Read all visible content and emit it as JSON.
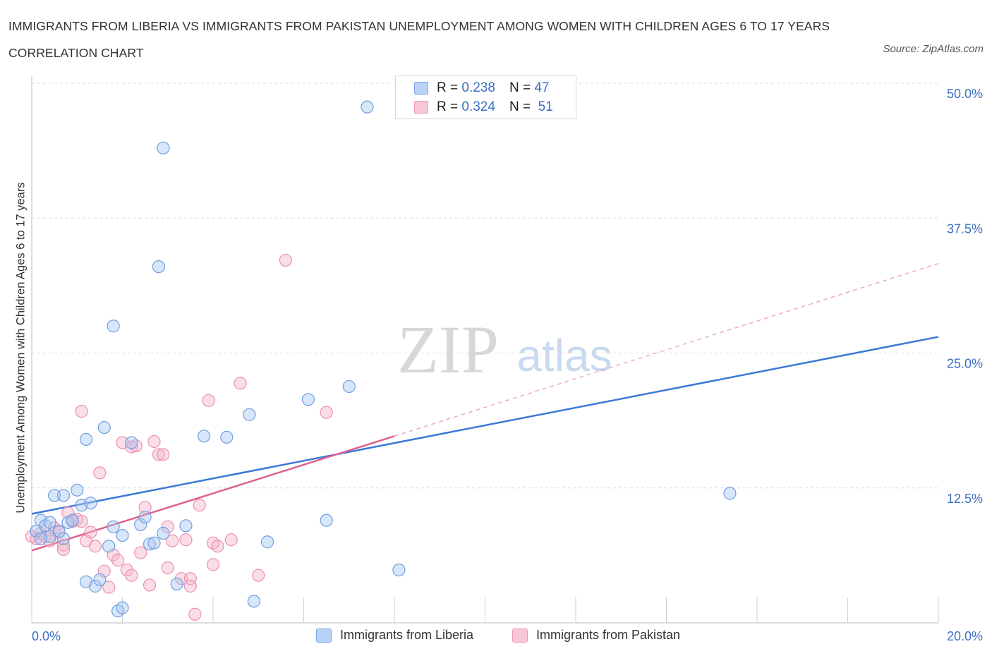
{
  "title": "IMMIGRANTS FROM LIBERIA VS IMMIGRANTS FROM PAKISTAN UNEMPLOYMENT AMONG WOMEN WITH CHILDREN AGES 6 TO 17 YEARS CORRELATION CHART",
  "source": "Source: ZipAtlas.com",
  "watermark": {
    "zip": "ZIP",
    "atlas": "atlas"
  },
  "legend_top": {
    "r_label": "R =",
    "n_label": "N =",
    "liberia": {
      "r": "0.238",
      "n": "47"
    },
    "pakistan": {
      "r": "0.324",
      "n": "51"
    }
  },
  "chart_data": {
    "type": "scatter",
    "title": "IMMIGRANTS FROM LIBERIA VS IMMIGRANTS FROM PAKISTAN UNEMPLOYMENT AMONG WOMEN WITH CHILDREN AGES 6 TO 17 YEARS CORRELATION CHART",
    "xlabel": "",
    "ylabel": "Unemployment Among Women with Children Ages 6 to 17 years",
    "xlim": [
      0,
      20
    ],
    "ylim": [
      0,
      50
    ],
    "x_tick_labels": [
      "0.0%",
      "20.0%"
    ],
    "y_tick_labels": [
      "12.5%",
      "25.0%",
      "37.5%",
      "50.0%"
    ],
    "y_ticks": [
      12.5,
      25,
      37.5,
      50
    ],
    "grid": true,
    "legend_position": "bottom",
    "colors": {
      "liberia": "#3a78d8",
      "pakistan": "#e0608e",
      "liberia_fill": "#a9c8f2",
      "pakistan_fill": "#f5b6ca"
    },
    "series": [
      {
        "name": "Immigrants from Liberia",
        "r": 0.238,
        "n": 47,
        "trend": {
          "x": [
            0,
            20
          ],
          "y": [
            10.1,
            26.5
          ]
        },
        "points": [
          [
            0.1,
            8.5
          ],
          [
            0.2,
            9.5
          ],
          [
            0.3,
            9.0
          ],
          [
            0.4,
            8.0
          ],
          [
            0.6,
            8.5
          ],
          [
            0.7,
            7.8
          ],
          [
            0.4,
            9.3
          ],
          [
            0.5,
            11.8
          ],
          [
            0.7,
            11.8
          ],
          [
            0.8,
            9.3
          ],
          [
            0.9,
            9.5
          ],
          [
            1.0,
            12.3
          ],
          [
            1.1,
            10.9
          ],
          [
            1.2,
            3.8
          ],
          [
            1.3,
            11.1
          ],
          [
            1.2,
            17.0
          ],
          [
            1.6,
            18.1
          ],
          [
            1.4,
            3.4
          ],
          [
            1.7,
            7.1
          ],
          [
            1.8,
            8.9
          ],
          [
            1.8,
            27.5
          ],
          [
            1.9,
            1.1
          ],
          [
            2.0,
            1.4
          ],
          [
            2.0,
            8.1
          ],
          [
            2.2,
            16.7
          ],
          [
            2.4,
            9.1
          ],
          [
            2.5,
            9.8
          ],
          [
            2.6,
            7.3
          ],
          [
            2.7,
            7.4
          ],
          [
            2.8,
            33.0
          ],
          [
            2.9,
            44.0
          ],
          [
            2.9,
            8.3
          ],
          [
            3.2,
            3.6
          ],
          [
            3.4,
            9.0
          ],
          [
            3.8,
            17.3
          ],
          [
            4.3,
            17.2
          ],
          [
            4.8,
            19.3
          ],
          [
            4.9,
            2.0
          ],
          [
            5.2,
            7.5
          ],
          [
            6.1,
            20.7
          ],
          [
            6.5,
            9.5
          ],
          [
            7.0,
            21.9
          ],
          [
            7.4,
            47.8
          ],
          [
            8.1,
            4.9
          ],
          [
            15.4,
            12.0
          ],
          [
            0.2,
            7.8
          ],
          [
            1.5,
            4.0
          ]
        ]
      },
      {
        "name": "Immigrants from Pakistan",
        "r": 0.324,
        "n": 51,
        "trend_solid": {
          "x": [
            0,
            8.0
          ],
          "y": [
            6.7,
            17.3
          ]
        },
        "trend_dashed": {
          "x": [
            8.0,
            20
          ],
          "y": [
            17.3,
            33.3
          ]
        },
        "points": [
          [
            0.1,
            7.8
          ],
          [
            0.2,
            8.3
          ],
          [
            0.3,
            8.0
          ],
          [
            0.4,
            7.6
          ],
          [
            0.5,
            8.8
          ],
          [
            0.6,
            8.4
          ],
          [
            0.7,
            7.2
          ],
          [
            0.7,
            6.8
          ],
          [
            0.8,
            10.2
          ],
          [
            0.9,
            9.4
          ],
          [
            1.0,
            9.6
          ],
          [
            1.1,
            9.4
          ],
          [
            1.1,
            19.6
          ],
          [
            1.2,
            7.6
          ],
          [
            1.3,
            8.4
          ],
          [
            1.4,
            7.1
          ],
          [
            1.5,
            13.9
          ],
          [
            1.6,
            4.8
          ],
          [
            1.7,
            3.3
          ],
          [
            1.8,
            6.3
          ],
          [
            1.9,
            5.8
          ],
          [
            2.0,
            16.7
          ],
          [
            2.1,
            4.9
          ],
          [
            2.2,
            4.4
          ],
          [
            2.2,
            16.3
          ],
          [
            2.3,
            16.4
          ],
          [
            2.4,
            6.5
          ],
          [
            2.5,
            10.7
          ],
          [
            2.6,
            3.5
          ],
          [
            2.7,
            16.8
          ],
          [
            2.8,
            15.6
          ],
          [
            2.9,
            15.6
          ],
          [
            3.0,
            5.1
          ],
          [
            3.0,
            8.9
          ],
          [
            3.1,
            7.6
          ],
          [
            3.3,
            4.1
          ],
          [
            3.4,
            7.7
          ],
          [
            3.5,
            4.1
          ],
          [
            3.5,
            3.4
          ],
          [
            3.6,
            0.8
          ],
          [
            3.7,
            10.9
          ],
          [
            3.9,
            20.6
          ],
          [
            4.0,
            7.4
          ],
          [
            4.0,
            5.4
          ],
          [
            4.1,
            7.1
          ],
          [
            4.4,
            7.7
          ],
          [
            4.6,
            22.2
          ],
          [
            5.0,
            4.4
          ],
          [
            5.6,
            33.6
          ],
          [
            6.5,
            19.5
          ],
          [
            0.0,
            8.0
          ]
        ]
      }
    ]
  },
  "legend_bottom": [
    {
      "label": "Immigrants from Liberia"
    },
    {
      "label": "Immigrants from Pakistan"
    }
  ]
}
